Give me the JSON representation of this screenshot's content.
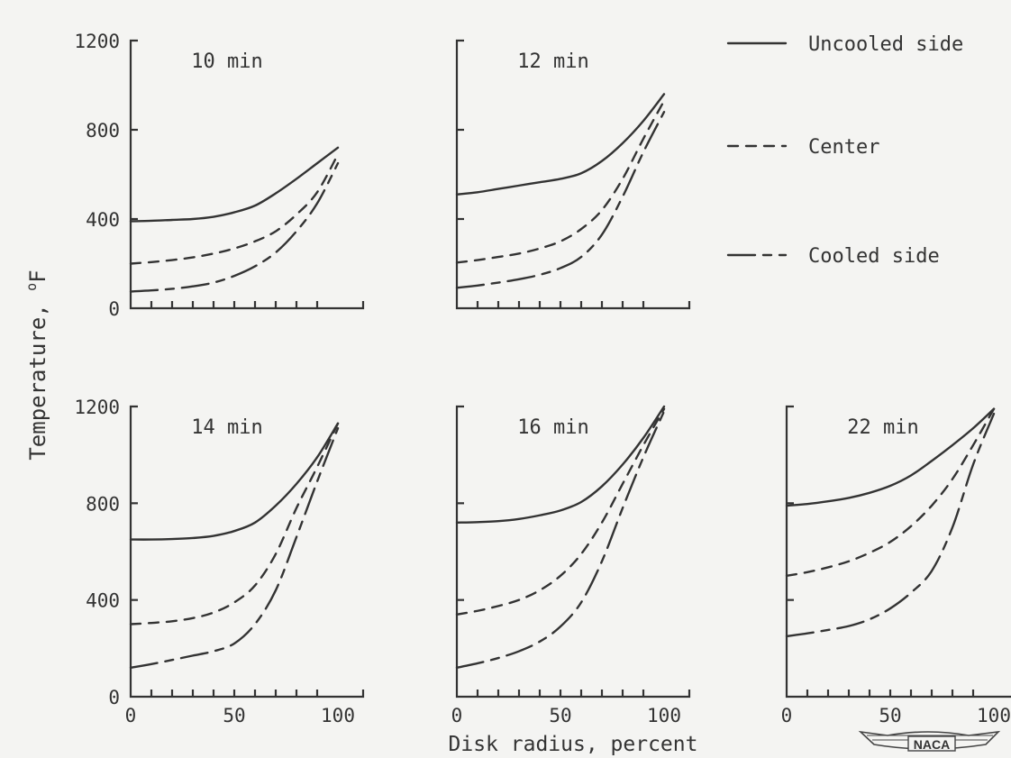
{
  "chart_data": {
    "type": "line",
    "ylabel": "Temperature, ",
    "ylabel_unit_super": "o",
    "ylabel_unit": "F",
    "xlabel": "Disk radius, percent",
    "xlim": [
      0,
      100
    ],
    "ylim": [
      0,
      1200
    ],
    "x_ticks": [
      "0",
      "50",
      "100"
    ],
    "y_ticks": [
      "0",
      "400",
      "800",
      "1200"
    ],
    "legend_position": "top-right",
    "logo_text": "NACA",
    "legend": [
      {
        "key": "uncooled",
        "label": "Uncooled side",
        "style": "solid"
      },
      {
        "key": "center",
        "label": "Center",
        "style": "dashed"
      },
      {
        "key": "cooled",
        "label": "Cooled side",
        "style": "long-dash-short-dash"
      }
    ],
    "panels": [
      {
        "title": "10 min",
        "series": [
          {
            "key": "uncooled",
            "points": [
              [
                0,
                390
              ],
              [
                10,
                392
              ],
              [
                20,
                396
              ],
              [
                30,
                400
              ],
              [
                40,
                410
              ],
              [
                50,
                430
              ],
              [
                60,
                460
              ],
              [
                70,
                515
              ],
              [
                80,
                580
              ],
              [
                90,
                650
              ],
              [
                100,
                720
              ]
            ]
          },
          {
            "key": "center",
            "points": [
              [
                0,
                200
              ],
              [
                10,
                207
              ],
              [
                20,
                216
              ],
              [
                30,
                228
              ],
              [
                40,
                245
              ],
              [
                50,
                268
              ],
              [
                60,
                300
              ],
              [
                70,
                345
              ],
              [
                80,
                420
              ],
              [
                90,
                520
              ],
              [
                100,
                690
              ]
            ]
          },
          {
            "key": "cooled",
            "points": [
              [
                0,
                75
              ],
              [
                10,
                80
              ],
              [
                20,
                87
              ],
              [
                30,
                98
              ],
              [
                40,
                115
              ],
              [
                50,
                145
              ],
              [
                60,
                188
              ],
              [
                70,
                250
              ],
              [
                80,
                345
              ],
              [
                90,
                470
              ],
              [
                100,
                650
              ]
            ]
          }
        ]
      },
      {
        "title": "12 min",
        "series": [
          {
            "key": "uncooled",
            "points": [
              [
                0,
                510
              ],
              [
                10,
                520
              ],
              [
                20,
                535
              ],
              [
                30,
                550
              ],
              [
                40,
                565
              ],
              [
                50,
                580
              ],
              [
                60,
                605
              ],
              [
                70,
                660
              ],
              [
                80,
                740
              ],
              [
                90,
                840
              ],
              [
                100,
                960
              ]
            ]
          },
          {
            "key": "center",
            "points": [
              [
                0,
                205
              ],
              [
                10,
                216
              ],
              [
                20,
                230
              ],
              [
                30,
                245
              ],
              [
                40,
                268
              ],
              [
                50,
                300
              ],
              [
                60,
                355
              ],
              [
                70,
                440
              ],
              [
                80,
                580
              ],
              [
                90,
                760
              ],
              [
                100,
                930
              ]
            ]
          },
          {
            "key": "cooled",
            "points": [
              [
                0,
                92
              ],
              [
                10,
                102
              ],
              [
                20,
                115
              ],
              [
                30,
                130
              ],
              [
                40,
                150
              ],
              [
                50,
                180
              ],
              [
                60,
                230
              ],
              [
                70,
                330
              ],
              [
                80,
                500
              ],
              [
                90,
                700
              ],
              [
                100,
                880
              ]
            ]
          }
        ]
      },
      {
        "title": "14 min",
        "series": [
          {
            "key": "uncooled",
            "points": [
              [
                0,
                650
              ],
              [
                10,
                650
              ],
              [
                20,
                652
              ],
              [
                30,
                656
              ],
              [
                40,
                665
              ],
              [
                50,
                685
              ],
              [
                60,
                720
              ],
              [
                70,
                790
              ],
              [
                80,
                880
              ],
              [
                90,
                990
              ],
              [
                100,
                1130
              ]
            ]
          },
          {
            "key": "center",
            "points": [
              [
                0,
                300
              ],
              [
                10,
                305
              ],
              [
                20,
                312
              ],
              [
                30,
                325
              ],
              [
                40,
                348
              ],
              [
                50,
                390
              ],
              [
                60,
                460
              ],
              [
                70,
                590
              ],
              [
                80,
                780
              ],
              [
                90,
                950
              ],
              [
                100,
                1130
              ]
            ]
          },
          {
            "key": "cooled",
            "points": [
              [
                0,
                120
              ],
              [
                10,
                135
              ],
              [
                20,
                152
              ],
              [
                30,
                170
              ],
              [
                40,
                188
              ],
              [
                50,
                220
              ],
              [
                60,
                300
              ],
              [
                70,
                440
              ],
              [
                80,
                660
              ],
              [
                90,
                890
              ],
              [
                100,
                1110
              ]
            ]
          }
        ]
      },
      {
        "title": "16 min",
        "series": [
          {
            "key": "uncooled",
            "points": [
              [
                0,
                720
              ],
              [
                10,
                722
              ],
              [
                20,
                726
              ],
              [
                30,
                735
              ],
              [
                40,
                750
              ],
              [
                50,
                770
              ],
              [
                60,
                805
              ],
              [
                70,
                870
              ],
              [
                80,
                960
              ],
              [
                90,
                1070
              ],
              [
                100,
                1200
              ]
            ]
          },
          {
            "key": "center",
            "points": [
              [
                0,
                340
              ],
              [
                10,
                355
              ],
              [
                20,
                375
              ],
              [
                30,
                400
              ],
              [
                40,
                440
              ],
              [
                50,
                500
              ],
              [
                60,
                590
              ],
              [
                70,
                720
              ],
              [
                80,
                880
              ],
              [
                90,
                1040
              ],
              [
                100,
                1190
              ]
            ]
          },
          {
            "key": "cooled",
            "points": [
              [
                0,
                120
              ],
              [
                10,
                138
              ],
              [
                20,
                160
              ],
              [
                30,
                188
              ],
              [
                40,
                228
              ],
              [
                50,
                290
              ],
              [
                60,
                390
              ],
              [
                70,
                560
              ],
              [
                80,
                780
              ],
              [
                90,
                990
              ],
              [
                100,
                1180
              ]
            ]
          }
        ]
      },
      {
        "title": "22 min",
        "series": [
          {
            "key": "uncooled",
            "points": [
              [
                0,
                790
              ],
              [
                10,
                797
              ],
              [
                20,
                808
              ],
              [
                30,
                822
              ],
              [
                40,
                843
              ],
              [
                50,
                872
              ],
              [
                60,
                915
              ],
              [
                70,
                975
              ],
              [
                80,
                1040
              ],
              [
                90,
                1110
              ],
              [
                100,
                1190
              ]
            ]
          },
          {
            "key": "center",
            "points": [
              [
                0,
                500
              ],
              [
                10,
                515
              ],
              [
                20,
                535
              ],
              [
                30,
                560
              ],
              [
                40,
                595
              ],
              [
                50,
                640
              ],
              [
                60,
                705
              ],
              [
                70,
                790
              ],
              [
                80,
                900
              ],
              [
                90,
                1040
              ],
              [
                100,
                1190
              ]
            ]
          },
          {
            "key": "cooled",
            "points": [
              [
                0,
                250
              ],
              [
                10,
                262
              ],
              [
                20,
                276
              ],
              [
                30,
                292
              ],
              [
                40,
                320
              ],
              [
                50,
                365
              ],
              [
                60,
                430
              ],
              [
                70,
                520
              ],
              [
                80,
                700
              ],
              [
                90,
                960
              ],
              [
                100,
                1170
              ]
            ]
          }
        ]
      }
    ]
  }
}
